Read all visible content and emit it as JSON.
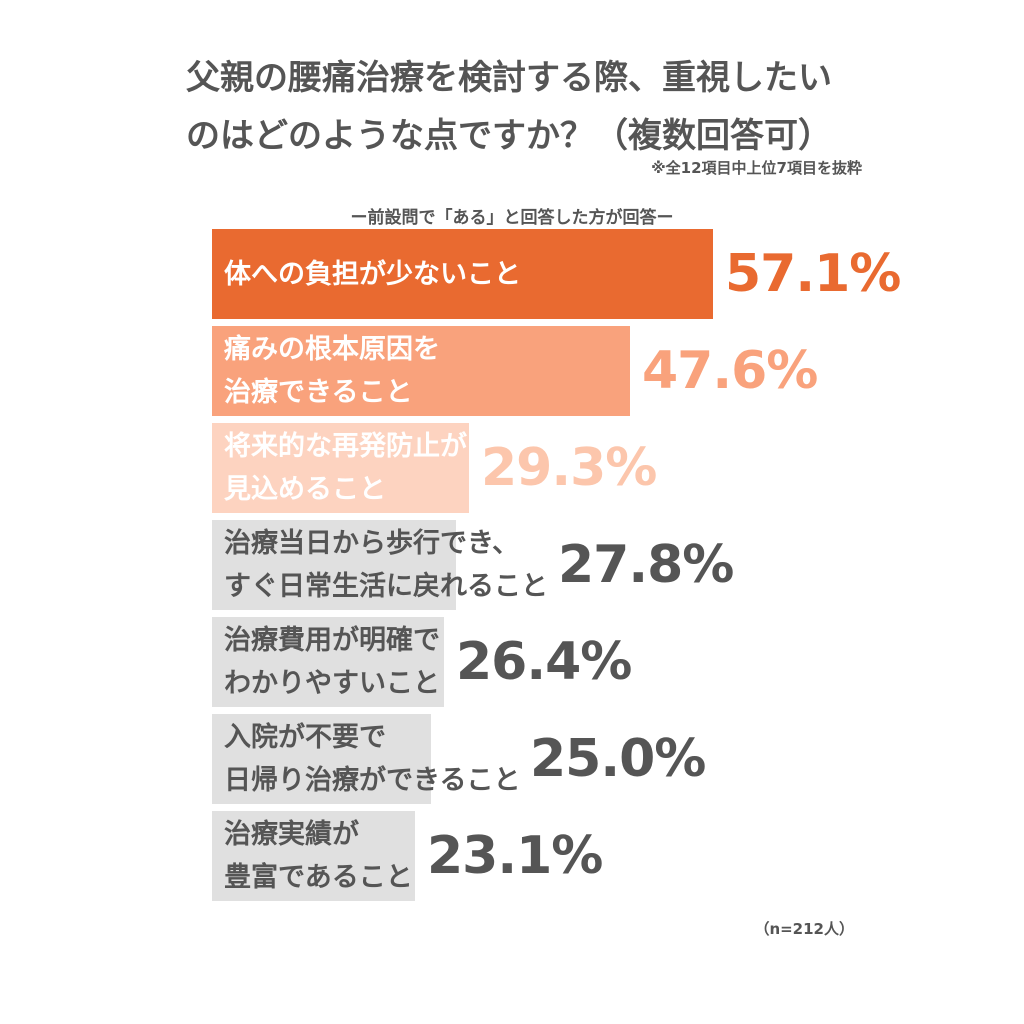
{
  "chart_data": {
    "type": "bar",
    "orientation": "horizontal",
    "title": [
      "父親の腰痛治療を検討する際、重視したい",
      "のはどのような点ですか？（複数回答可）"
    ],
    "note": "※全12項目中上位7項目を抜粋",
    "subtitle": "ー前設問で「ある」と回答した方が回答ー",
    "sample_size": "（n=212人）",
    "xlim": [
      0,
      57.1
    ],
    "categories": [
      [
        "体への負担が少ないこと"
      ],
      [
        "痛みの根本原因を",
        "治療できること"
      ],
      [
        "将来的な再発防止が",
        "見込めること"
      ],
      [
        "治療当日から歩行でき、",
        "すぐ日常生活に戻れること"
      ],
      [
        "治療費用が明確で",
        "わかりやすいこと"
      ],
      [
        "入院が不要で",
        "日帰り治療ができること"
      ],
      [
        "治療実績が",
        "豊富であること"
      ]
    ],
    "values": [
      57.1,
      47.6,
      29.3,
      27.8,
      26.4,
      25.0,
      23.1
    ],
    "value_labels": [
      "57.1%",
      "47.6%",
      "29.3%",
      "27.8%",
      "26.4%",
      "25.0%",
      "23.1%"
    ],
    "bar_colors": [
      "#e96a30",
      "#f9a27c",
      "#fdd3c0",
      "#e0e0e0",
      "#e0e0e0",
      "#e0e0e0",
      "#e0e0e0"
    ],
    "label_colors": [
      "#ffffff",
      "#ffffff",
      "#ffffff",
      "#555555",
      "#555555",
      "#555555",
      "#555555"
    ],
    "value_colors": [
      "#e96a30",
      "#f9a27c",
      "#fcc6ac",
      "#555555",
      "#555555",
      "#555555",
      "#555555"
    ]
  }
}
